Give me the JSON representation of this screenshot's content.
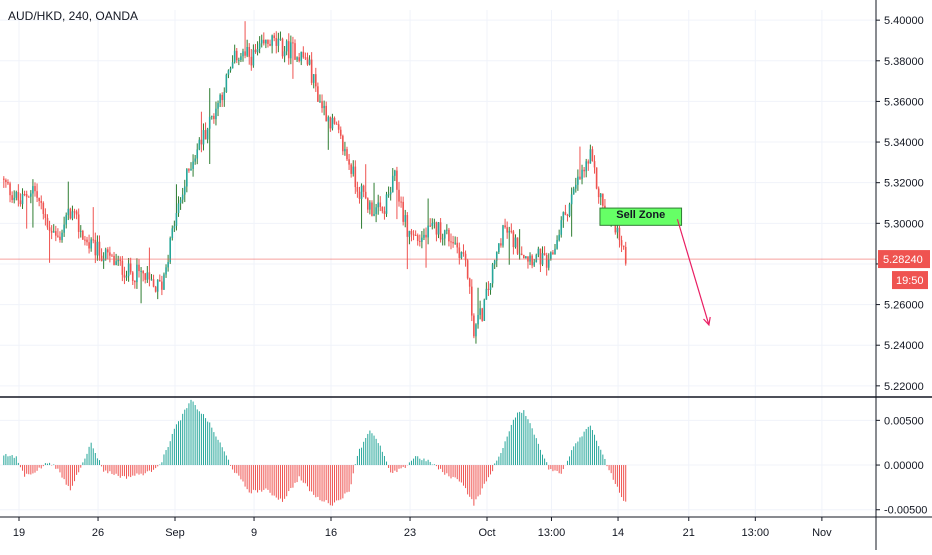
{
  "header": {
    "symbol_title": "AUD/HKD, 240, OANDA"
  },
  "colors": {
    "up": "#26a69a",
    "up_wick": "#2e7d32",
    "down": "#ef5350",
    "price_line": "#ef5350",
    "grid": "#f0f3fa",
    "axis_text": "#131722",
    "annotation_fill": "#66ff66",
    "annotation_border": "#2e7d32",
    "arrow": "#e91e63"
  },
  "annotations": {
    "sell_zone_label": "Sell Zone",
    "current_price": "5.28240",
    "countdown": "19:50"
  },
  "chart_data": [
    {
      "type": "candlestick",
      "symbol": "AUD/HKD",
      "interval": "240",
      "source": "OANDA",
      "ylim": [
        5.215,
        5.405
      ],
      "y_ticks": [
        "5.40000",
        "5.38000",
        "5.36000",
        "5.34000",
        "5.32000",
        "5.30000",
        "5.28000",
        "5.26000",
        "5.24000",
        "5.22000"
      ],
      "x_ticks": [
        "19",
        "26",
        "Sep",
        "9",
        "16",
        "23",
        "Oct",
        "13:00",
        "14",
        "21",
        "13:00",
        "Nov"
      ],
      "x_tick_positions": [
        0,
        38,
        75,
        113,
        150,
        188,
        225,
        256,
        288,
        322,
        354,
        386
      ],
      "anchors_close": [
        [
          0,
          5.32
        ],
        [
          8,
          5.31
        ],
        [
          14,
          5.318
        ],
        [
          20,
          5.302
        ],
        [
          26,
          5.292
        ],
        [
          32,
          5.306
        ],
        [
          40,
          5.29
        ],
        [
          50,
          5.283
        ],
        [
          60,
          5.276
        ],
        [
          66,
          5.275
        ],
        [
          72,
          5.268
        ],
        [
          76,
          5.27
        ],
        [
          82,
          5.3
        ],
        [
          90,
          5.33
        ],
        [
          100,
          5.352
        ],
        [
          112,
          5.383
        ],
        [
          120,
          5.382
        ],
        [
          128,
          5.39
        ],
        [
          134,
          5.386
        ],
        [
          140,
          5.385
        ],
        [
          146,
          5.38
        ],
        [
          152,
          5.36
        ],
        [
          160,
          5.345
        ],
        [
          166,
          5.33
        ],
        [
          170,
          5.318
        ],
        [
          176,
          5.308
        ],
        [
          182,
          5.305
        ],
        [
          188,
          5.322
        ],
        [
          194,
          5.296
        ],
        [
          200,
          5.292
        ],
        [
          208,
          5.298
        ],
        [
          216,
          5.292
        ],
        [
          222,
          5.282
        ],
        [
          226,
          5.248
        ],
        [
          230,
          5.256
        ],
        [
          236,
          5.28
        ],
        [
          240,
          5.298
        ],
        [
          246,
          5.29
        ],
        [
          252,
          5.284
        ],
        [
          258,
          5.283
        ],
        [
          262,
          5.278
        ],
        [
          268,
          5.3
        ],
        [
          276,
          5.32
        ],
        [
          282,
          5.332
        ],
        [
          286,
          5.315
        ],
        [
          290,
          5.303
        ],
        [
          294,
          5.3
        ],
        [
          298,
          5.284
        ]
      ],
      "candles_count": 300,
      "price_line": 5.2824,
      "sell_zone": {
        "x_start": 287,
        "x_end": 307,
        "top": 5.3075,
        "bottom": 5.3
      },
      "projection_arrow": {
        "from": [
          305,
          5.302
        ],
        "to": [
          324,
          5.25
        ]
      }
    },
    {
      "type": "histogram",
      "name": "oscillator",
      "ylim": [
        -0.0057,
        0.0075
      ],
      "y_ticks": [
        "0.00500",
        "0.00000",
        "-0.00500"
      ],
      "zero": 0,
      "anchors": [
        [
          0,
          0.0012
        ],
        [
          6,
          0.0008
        ],
        [
          10,
          -0.0012
        ],
        [
          16,
          -0.0006
        ],
        [
          22,
          0.0004
        ],
        [
          26,
          -0.0006
        ],
        [
          32,
          -0.0028
        ],
        [
          38,
          0.0004
        ],
        [
          42,
          0.0024
        ],
        [
          48,
          -0.0006
        ],
        [
          58,
          -0.0014
        ],
        [
          70,
          -0.0008
        ],
        [
          76,
          0.0004
        ],
        [
          82,
          0.004
        ],
        [
          90,
          0.0072
        ],
        [
          98,
          0.005
        ],
        [
          104,
          0.0024
        ],
        [
          110,
          -0.0004
        ],
        [
          118,
          -0.003
        ],
        [
          126,
          -0.0028
        ],
        [
          134,
          -0.004
        ],
        [
          142,
          -0.0014
        ],
        [
          150,
          -0.0036
        ],
        [
          158,
          -0.0044
        ],
        [
          166,
          -0.003
        ],
        [
          170,
          0.0012
        ],
        [
          176,
          0.004
        ],
        [
          182,
          0.0016
        ],
        [
          186,
          -0.001
        ],
        [
          192,
          -0.0004
        ],
        [
          198,
          0.001
        ],
        [
          206,
          0.0002
        ],
        [
          212,
          -0.001
        ],
        [
          220,
          -0.0018
        ],
        [
          226,
          -0.0044
        ],
        [
          234,
          -0.001
        ],
        [
          240,
          0.002
        ],
        [
          246,
          0.0055
        ],
        [
          250,
          0.0062
        ],
        [
          256,
          0.003
        ],
        [
          262,
          -0.0004
        ],
        [
          268,
          -0.001
        ],
        [
          274,
          0.0022
        ],
        [
          282,
          0.0046
        ],
        [
          288,
          0.001
        ],
        [
          292,
          -0.001
        ],
        [
          298,
          -0.0042
        ]
      ]
    }
  ]
}
